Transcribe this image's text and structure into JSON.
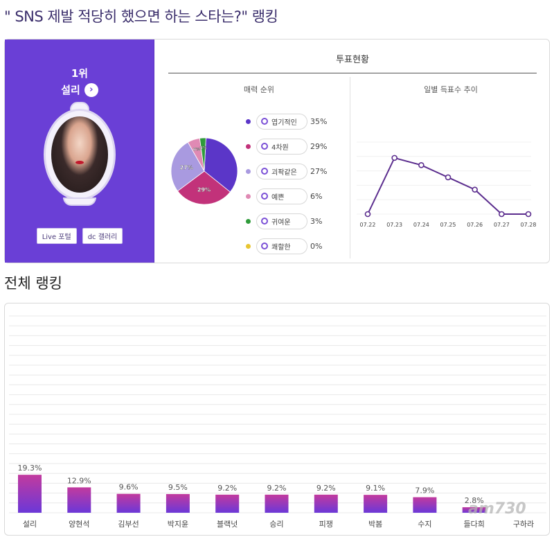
{
  "page": {
    "title": "\" SNS 제발 적당히 했으면 하는 스타는?\" 랭킹",
    "section_title": "전체 랭킹",
    "watermark": "am730"
  },
  "winner": {
    "rank": "1위",
    "name": "설리",
    "arrow_icon": "chevron-right-icon",
    "live_button": "Live 포털",
    "gallery_button": "dc 갤러리",
    "panel_color": "#6a3fd6"
  },
  "vote_status": {
    "title": "투표현황",
    "pie_title": "매력 순위",
    "line_title": "일별 득표수 추이"
  },
  "chart_data": [
    {
      "type": "pie",
      "title": "매력 순위",
      "slices": [
        {
          "label": "엽기적인",
          "value": 35,
          "pct_label": "35%",
          "color": "#5b36c8"
        },
        {
          "label": "4차원",
          "value": 29,
          "pct_label": "29%",
          "color": "#c2327a"
        },
        {
          "label": "괴팍같은",
          "value": 27,
          "pct_label": "27%",
          "color": "#a99ae0"
        },
        {
          "label": "예쁜",
          "value": 6,
          "pct_label": "6%",
          "color": "#e08ab4"
        },
        {
          "label": "귀여운",
          "value": 3,
          "pct_label": "3%",
          "color": "#2f9b3a"
        },
        {
          "label": "쾌할한",
          "value": 0,
          "pct_label": "0%",
          "color": "#e8c531"
        }
      ],
      "slice_labels": [
        "29%",
        "27%",
        "6%",
        "3%"
      ]
    },
    {
      "type": "line",
      "title": "일별 득표수 추이",
      "x": [
        "07.22",
        "07.23",
        "07.24",
        "07.25",
        "07.26",
        "07.27",
        "07.28"
      ],
      "y": [
        0,
        78,
        68,
        51,
        34,
        0,
        0
      ],
      "ylim": [
        0,
        100
      ],
      "color": "#5b2d8e"
    },
    {
      "type": "bar",
      "title": "전체 랭킹",
      "categories": [
        "설리",
        "양현석",
        "김부선",
        "박지윤",
        "블랙넛",
        "승리",
        "피쟁",
        "박봄",
        "수지",
        "들다희",
        "구하라"
      ],
      "values": [
        19.3,
        12.9,
        9.6,
        9.5,
        9.2,
        9.2,
        9.2,
        9.1,
        7.9,
        2.8,
        null
      ],
      "value_labels": [
        "19.3%",
        "12.9%",
        "9.6%",
        "9.5%",
        "9.2%",
        "9.2%",
        "9.2%",
        "9.1%",
        "7.9%",
        "2.8%",
        ""
      ],
      "ylim": [
        0,
        100
      ],
      "gradient": [
        "#c23a9e",
        "#6b38d8"
      ],
      "grid": true
    }
  ]
}
